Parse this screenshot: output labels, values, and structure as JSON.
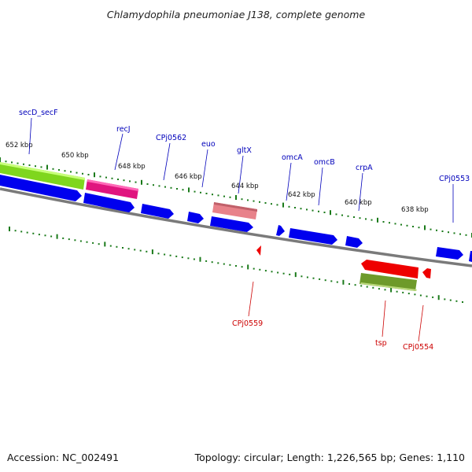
{
  "title": "Chlamydophila pneumoniae J138, complete genome",
  "footer": {
    "accession": "Accession: NC_002491",
    "summary": "Topology: circular; Length: 1,226,565 bp; Genes: 1,110"
  },
  "colors": {
    "forward_label": "#0000bb",
    "reverse_label": "#cc0000",
    "cds": "#0000ee",
    "backbone": "#777777",
    "ruler_ticks": "#1a7a1a"
  },
  "position_ticks": [
    "652 kbp",
    "650 kbp",
    "648 kbp",
    "646 kbp",
    "644 kbp",
    "642 kbp",
    "640 kbp",
    "638 kbp"
  ],
  "forward_gene_labels": [
    "secD_secF",
    "recJ",
    "CPj0562",
    "euo",
    "gltX",
    "omcA",
    "omcB",
    "crpA",
    "CPj0553"
  ],
  "reverse_gene_labels": [
    "CPj0559",
    "tsp",
    "CPj0554"
  ]
}
